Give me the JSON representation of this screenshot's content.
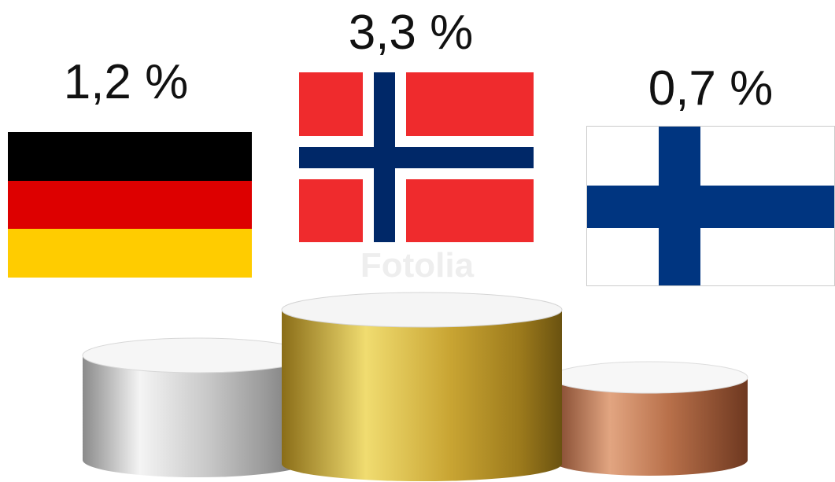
{
  "podium": [
    {
      "label": "1,2 %"
    },
    {
      "label": "3,3 %"
    },
    {
      "label": "0,7 %"
    }
  ],
  "watermark": "Fotolia"
}
